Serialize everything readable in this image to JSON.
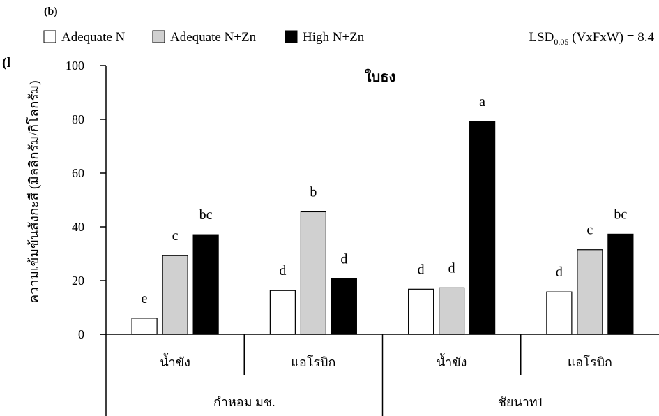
{
  "panel_label": "(b)",
  "stray_label": "(l",
  "lsd": {
    "prefix": "LSD",
    "sub": "0.05",
    "suffix": " (VxFxW) = 8.4"
  },
  "colors": {
    "Adequate N": "#ffffff",
    "Adequate N+Zn": "#d0d0d0",
    "High N+Zn": "#000000",
    "stroke": "#000000"
  },
  "chart_data": {
    "type": "bar",
    "title": "ใบธง",
    "ylabel": "ความเข้มข้นสังกะสี (มิลลิกรัม/กิโลกรัม)",
    "xlabel": "",
    "ylim": [
      0,
      100
    ],
    "yticks": [
      0,
      20,
      40,
      60,
      80,
      100
    ],
    "grid": false,
    "legend_position": "top-left",
    "categories": [
      "น้ำขัง",
      "แอโรบิก",
      "น้ำขัง",
      "แอโรบิก"
    ],
    "groups": [
      {
        "label": "กำหอม มช.",
        "span": [
          0,
          1
        ]
      },
      {
        "label": "ชัยนาท1",
        "span": [
          2,
          3
        ]
      }
    ],
    "series": [
      {
        "name": "Adequate N",
        "values": [
          6,
          16.3,
          16.8,
          15.8
        ],
        "letters": [
          "e",
          "d",
          "d",
          "d"
        ]
      },
      {
        "name": "Adequate N+Zn",
        "values": [
          29.3,
          45.6,
          17.3,
          31.5
        ],
        "letters": [
          "c",
          "b",
          "d",
          "c"
        ]
      },
      {
        "name": "High N+Zn",
        "values": [
          37.1,
          20.7,
          79.2,
          37.3
        ],
        "letters": [
          "bc",
          "d",
          "a",
          "bc"
        ]
      }
    ]
  }
}
